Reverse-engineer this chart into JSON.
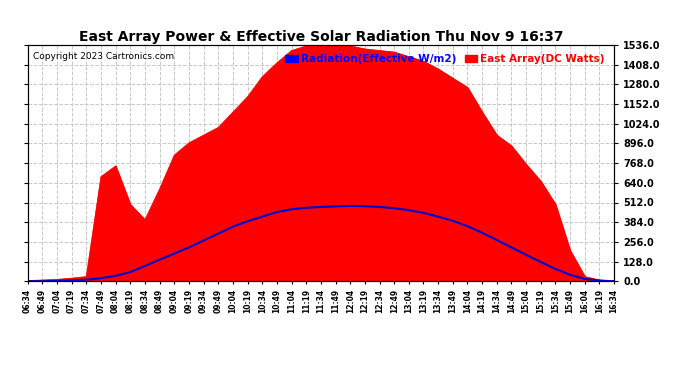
{
  "title": "East Array Power & Effective Solar Radiation Thu Nov 9 16:37",
  "copyright": "Copyright 2023 Cartronics.com",
  "legend_radiation": "Radiation(Effective W/m2)",
  "legend_east_array": "East Array(DC Watts)",
  "y_ticks": [
    0.0,
    128.0,
    256.0,
    384.0,
    512.0,
    640.0,
    768.0,
    896.0,
    1024.0,
    1152.0,
    1280.0,
    1408.0,
    1536.0
  ],
  "y_max": 1536.0,
  "background_color": "#ffffff",
  "grid_color": "#c8c8c8",
  "fill_color": "#ff0000",
  "line_color": "#0000cc",
  "radiation_color": "#0000ff",
  "east_array_color": "#ff0000",
  "x_labels": [
    "06:34",
    "06:49",
    "07:04",
    "07:19",
    "07:34",
    "07:49",
    "08:04",
    "08:19",
    "08:34",
    "08:49",
    "09:04",
    "09:19",
    "09:34",
    "09:49",
    "10:04",
    "10:19",
    "10:34",
    "10:49",
    "11:04",
    "11:19",
    "11:34",
    "11:49",
    "12:04",
    "12:19",
    "12:34",
    "12:49",
    "13:04",
    "13:19",
    "13:34",
    "13:49",
    "14:04",
    "14:19",
    "14:34",
    "14:49",
    "15:04",
    "15:19",
    "15:34",
    "15:49",
    "16:04",
    "16:19",
    "16:34"
  ],
  "east_array_values": [
    5,
    8,
    12,
    20,
    30,
    680,
    750,
    500,
    400,
    600,
    820,
    900,
    950,
    1000,
    1100,
    1200,
    1330,
    1420,
    1500,
    1530,
    1536,
    1536,
    1530,
    1510,
    1500,
    1490,
    1460,
    1430,
    1380,
    1320,
    1260,
    1100,
    950,
    880,
    760,
    650,
    500,
    200,
    30,
    8,
    3
  ],
  "radiation_values": [
    0,
    0,
    2,
    5,
    10,
    20,
    35,
    60,
    100,
    140,
    180,
    220,
    265,
    310,
    355,
    390,
    420,
    450,
    468,
    478,
    483,
    487,
    490,
    488,
    483,
    475,
    462,
    445,
    420,
    393,
    358,
    315,
    268,
    220,
    172,
    125,
    80,
    42,
    15,
    4,
    0
  ]
}
